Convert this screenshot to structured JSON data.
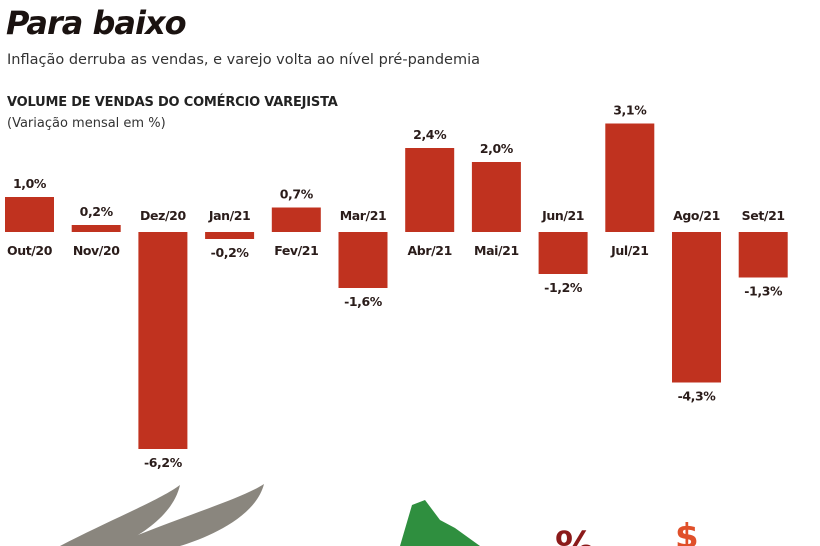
{
  "header": {
    "title": "Para baixo",
    "subtitle": "Inflação derruba as vendas, e varejo volta ao nível pré-pandemia"
  },
  "chart_data": {
    "type": "bar",
    "title": "VOLUME DE VENDAS DO COMÉRCIO VAREJISTA",
    "subtitle": "(Variação mensal em %)",
    "categories": [
      "Out/20",
      "Nov/20",
      "Dez/20",
      "Jan/21",
      "Fev/21",
      "Mar/21",
      "Abr/21",
      "Mai/21",
      "Jun/21",
      "Jul/21",
      "Ago/21",
      "Set/21"
    ],
    "values": [
      1.0,
      0.2,
      -6.2,
      -0.2,
      0.7,
      -1.6,
      2.4,
      2.0,
      -1.2,
      3.1,
      -4.3,
      -1.3
    ],
    "data_labels": [
      "1,0%",
      "0,2%",
      "-6,2%",
      "-0,2%",
      "0,7%",
      "-1,6%",
      "2,4%",
      "2,0%",
      "-1,2%",
      "3,1%",
      "-4,3%",
      "-1,3%"
    ],
    "xlabel": "",
    "ylabel": "",
    "grid": false,
    "bar_color": "#c0321f"
  },
  "illustration": {
    "colors": {
      "gray": "#8a867e",
      "green": "#2f8f3f",
      "percent": "#8b1a1a",
      "dollar": "#e0502a"
    },
    "icons": [
      "claws-icon",
      "dinosaur-icon",
      "percent-icon",
      "dollar-icon"
    ]
  }
}
